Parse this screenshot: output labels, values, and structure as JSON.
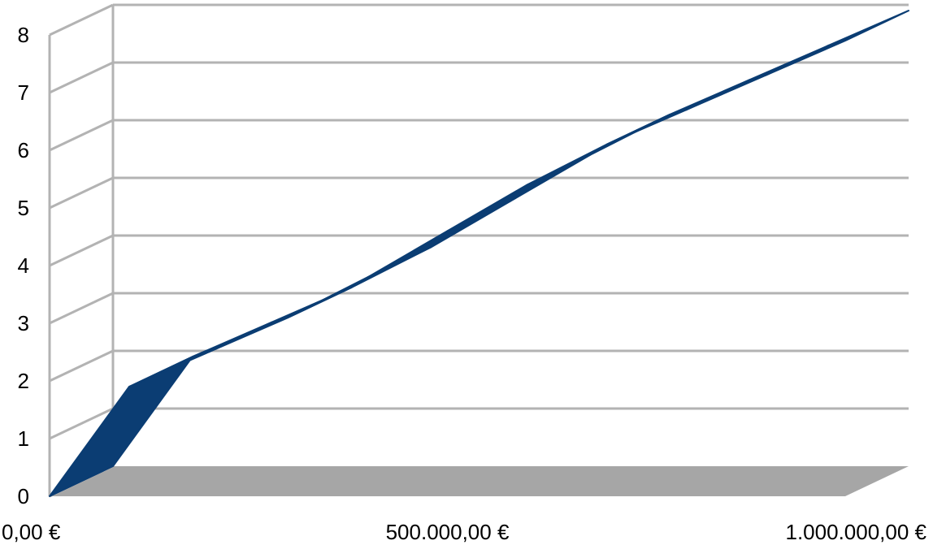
{
  "chart_data": {
    "type": "line",
    "title": "",
    "xlabel": "",
    "ylabel": "",
    "x_ticks": [
      "0,00 €",
      "500.000,00 €",
      "1.000.000,00 €"
    ],
    "y_ticks": [
      "0",
      "1",
      "2",
      "3",
      "4",
      "5",
      "6",
      "7",
      "8"
    ],
    "xlim": [
      0,
      1000000
    ],
    "ylim": [
      0,
      8
    ],
    "grid": true,
    "three_d": true,
    "series": [
      {
        "x": [
          0,
          100000,
          200000,
          300000,
          400000,
          500000,
          600000,
          700000,
          800000,
          900000,
          1000000
        ],
        "values": [
          0,
          1.9,
          2.5,
          3.1,
          3.8,
          4.6,
          5.4,
          6.1,
          6.7,
          7.3,
          7.9
        ],
        "color": "#0b3d73"
      }
    ],
    "colors": {
      "floor": "#a6a6a6",
      "gridline": "#b3b3b3",
      "axis": "#b3b3b3",
      "line": "#0b3d73"
    }
  }
}
